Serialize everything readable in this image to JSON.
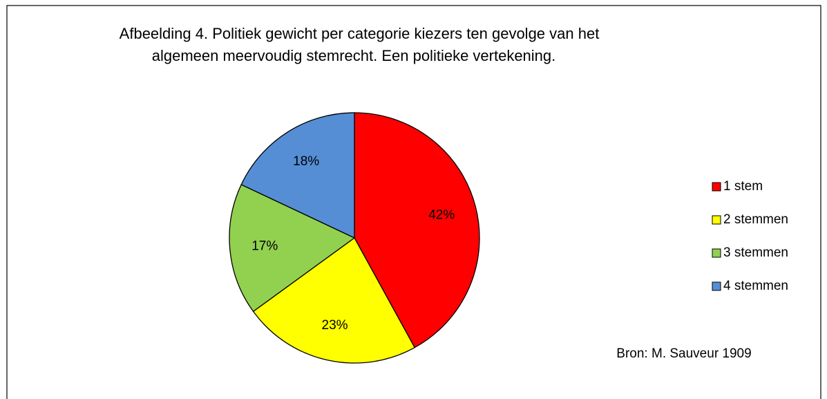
{
  "chart_data": {
    "type": "pie",
    "title": [
      "Afbeelding 4. Politiek gewicht per categorie kiezers ten gevolge van het",
      "algemeen meervoudig stemrecht. Een politieke vertekening."
    ],
    "categories": [
      "1 stem",
      "2 stemmen",
      "3 stemmen",
      "4 stemmen"
    ],
    "values": [
      42,
      23,
      17,
      18
    ],
    "value_labels": [
      "42%",
      "23%",
      "17%",
      "18%"
    ],
    "colors": [
      "#ff0000",
      "#ffff00",
      "#92d050",
      "#558ed5"
    ],
    "legend": "right",
    "annotation": "Bron: M. Sauveur 1909"
  }
}
